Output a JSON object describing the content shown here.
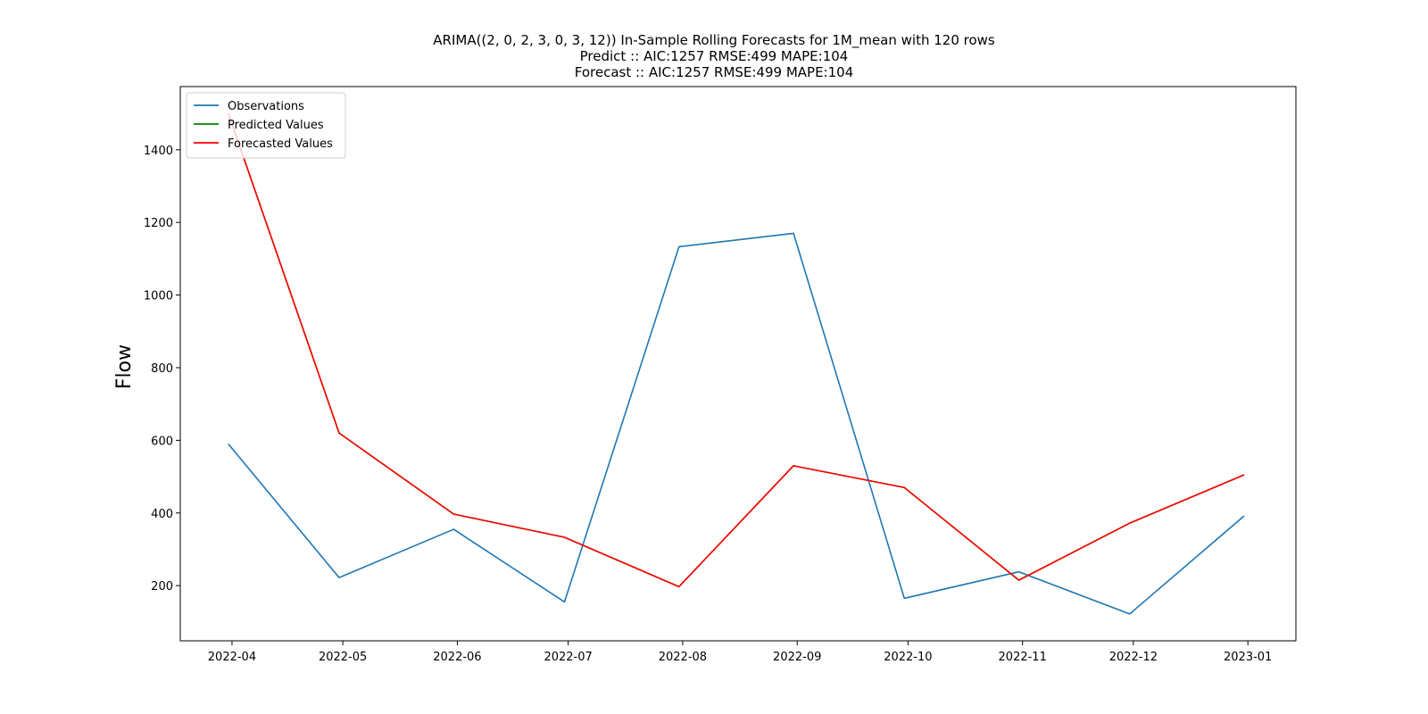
{
  "chart_data": {
    "type": "line",
    "title": "ARIMA((2, 0, 2, 3, 0, 3, 12)) In-Sample Rolling Forecasts for 1M_mean with 120 rows",
    "subtitle_lines": [
      "Predict :: AIC:1257 RMSE:499 MAPE:104",
      "Forecast :: AIC:1257 RMSE:499 MAPE:104"
    ],
    "xlabel": "",
    "ylabel": "Flow",
    "x": [
      "2022-03-31",
      "2022-04-30",
      "2022-05-31",
      "2022-06-30",
      "2022-07-31",
      "2022-08-31",
      "2022-09-30",
      "2022-10-31",
      "2022-11-30",
      "2022-12-31"
    ],
    "x_ticks": [
      "2022-04",
      "2022-05",
      "2022-06",
      "2022-07",
      "2022-08",
      "2022-09",
      "2022-10",
      "2022-11",
      "2022-12",
      "2023-01"
    ],
    "x_range": [
      "2022-03-18",
      "2023-01-14"
    ],
    "y_ticks": [
      200,
      400,
      600,
      800,
      1000,
      1200,
      1400
    ],
    "ylim": [
      48,
      1574
    ],
    "grid": false,
    "legend_position": "top-left",
    "series": [
      {
        "name": "Observations",
        "color": "#1f77b4",
        "values": [
          590,
          222,
          355,
          155,
          1133,
          1170,
          165,
          238,
          122,
          392
        ]
      },
      {
        "name": "Predicted Values",
        "color": "#008000",
        "values": [
          1500,
          620,
          397,
          333,
          197,
          530,
          470,
          215,
          372,
          505
        ]
      },
      {
        "name": "Forecasted Values",
        "color": "#ff0000",
        "values": [
          1500,
          620,
          397,
          333,
          197,
          530,
          470,
          215,
          372,
          505
        ]
      }
    ]
  }
}
